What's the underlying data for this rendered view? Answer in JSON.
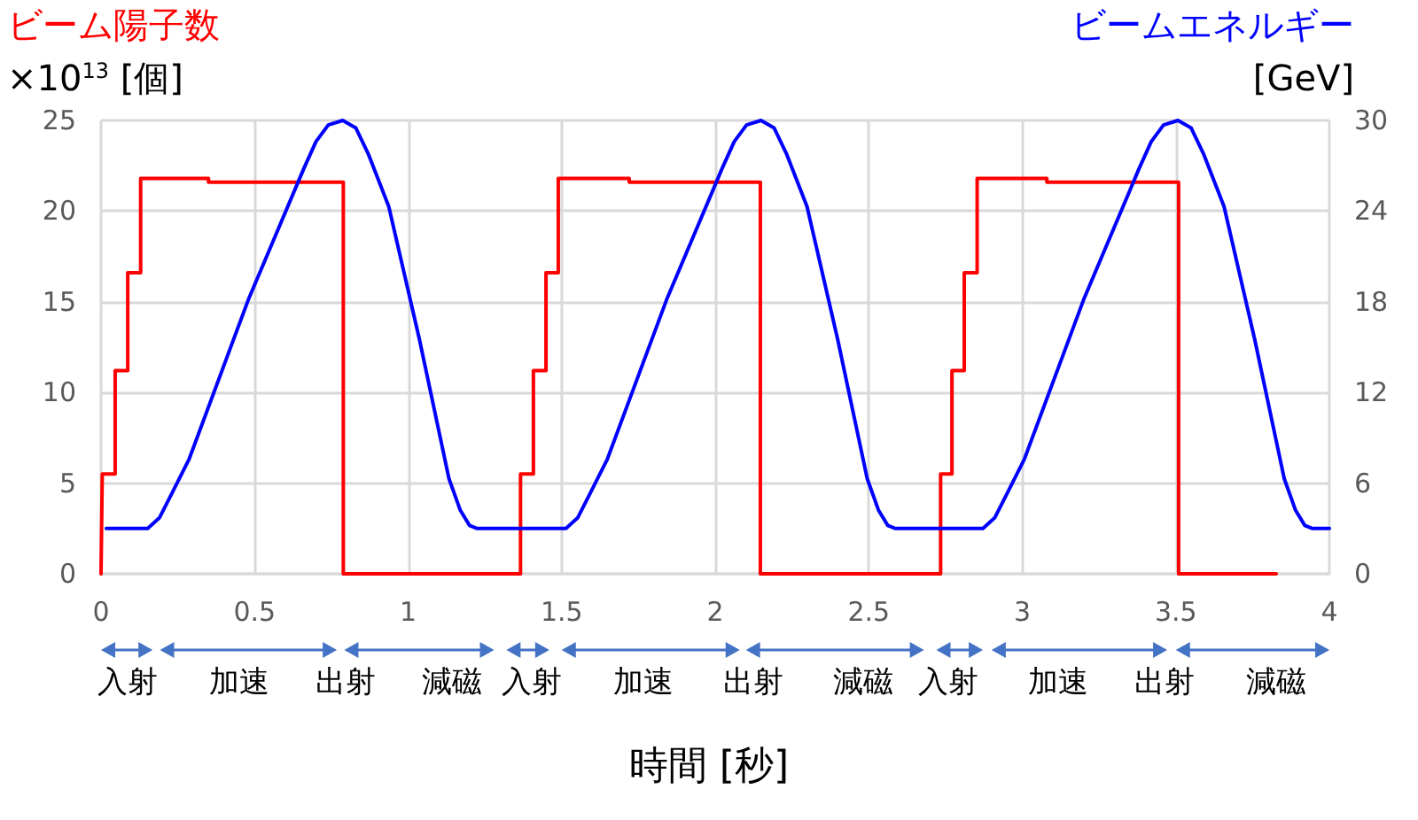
{
  "chart_data": {
    "type": "line",
    "ylabel": "ビーム陽子数\n×10$^{13}$ [個]",
    "y2label": "ビームエネルギー\n[GeV]",
    "xlabel": "時間 [秒]",
    "series": [
      {
        "type": "step",
        "color": "#ff0000",
        "x": [
          0,
          0.004,
          0.046,
          0.087,
          0.129,
          0.35,
          0.789,
          1.366,
          1.408,
          1.449,
          1.489,
          1.72,
          2.147,
          2.734,
          2.771,
          2.811,
          2.853,
          3.08,
          3.509,
          3.827
        ],
        "values": [
          0,
          5.5,
          11.2,
          16.6,
          21.8,
          21.6,
          0,
          5.5,
          11.2,
          16.6,
          21.8,
          21.6,
          0,
          5.5,
          11.2,
          16.6,
          21.8,
          21.6,
          0,
          0
        ]
      },
      {
        "axis": "y2",
        "color": "#0000ff",
        "x": [
          0.017,
          0.152,
          0.19,
          0.23,
          0.287,
          0.479,
          0.66,
          0.7,
          0.74,
          0.787,
          0.83,
          0.87,
          0.937,
          1.037,
          1.133,
          1.17,
          1.2,
          1.225,
          1.514,
          1.552,
          1.592,
          1.649,
          1.841,
          2.022,
          2.062,
          2.102,
          2.149,
          2.192,
          2.232,
          2.299,
          2.399,
          2.495,
          2.532,
          2.562,
          2.587,
          2.872,
          2.91,
          2.95,
          3.007,
          3.199,
          3.38,
          3.42,
          3.46,
          3.507,
          3.55,
          3.59,
          3.657,
          3.757,
          3.853,
          3.89,
          3.92,
          3.945,
          4.0
        ],
        "values": [
          3,
          3,
          3.7,
          5.3,
          7.6,
          18.1,
          26.8,
          28.6,
          29.7,
          30,
          29.5,
          27.8,
          24.3,
          15.5,
          6.3,
          4.2,
          3.2,
          3,
          3,
          3.7,
          5.3,
          7.6,
          18.1,
          26.8,
          28.6,
          29.7,
          30,
          29.5,
          27.8,
          24.3,
          15.5,
          6.3,
          4.2,
          3.2,
          3,
          3,
          3.7,
          5.3,
          7.6,
          18.1,
          26.8,
          28.6,
          29.7,
          30,
          29.5,
          27.8,
          24.3,
          15.5,
          6.3,
          4.2,
          3.2,
          3,
          3
        ]
      }
    ],
    "xlim": [
      0,
      4
    ],
    "xticks": [
      0,
      0.5,
      1,
      1.5,
      2,
      2.5,
      3,
      3.5,
      4
    ],
    "ylim": [
      0,
      25
    ],
    "yticks": [
      0,
      5,
      10,
      15,
      20,
      25
    ],
    "y2lim": [
      0,
      30
    ],
    "y2ticks": [
      0,
      6,
      12,
      18,
      24,
      30
    ],
    "grid": true,
    "marker": "none",
    "line_style": "solid",
    "annotations": [
      "入射",
      "加速",
      "出射",
      "減磁",
      "入射",
      "加速",
      "出射",
      "減磁",
      "入射",
      "加速",
      "出射",
      "減磁"
    ]
  }
}
